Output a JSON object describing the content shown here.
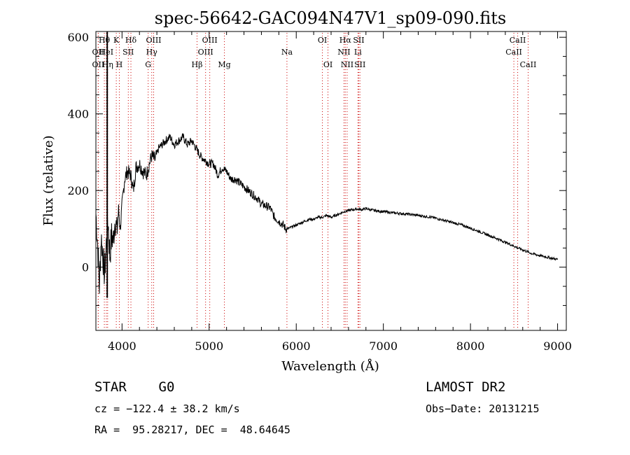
{
  "chart_data": {
    "type": "line",
    "title": "spec-56642-GAC094N47V1_sp09-090.fits",
    "xlabel": "Wavelength (Å)",
    "ylabel": "Flux (relative)",
    "xlim": [
      3700,
      9100
    ],
    "ylim": [
      -165,
      615
    ],
    "xticks": [
      4000,
      5000,
      6000,
      7000,
      8000,
      9000
    ],
    "yticks": [
      0,
      200,
      400,
      600
    ],
    "grid": false,
    "series": [
      {
        "x": [
          3700,
          3720,
          3740,
          3760,
          3780,
          3800,
          3820,
          3840,
          3860,
          3880,
          3900,
          3920,
          3940,
          3960,
          3980,
          4000,
          4030,
          4060,
          4100,
          4130,
          4160,
          4200,
          4240,
          4280,
          4300,
          4340,
          4380,
          4420,
          4460,
          4500,
          4550,
          4600,
          4650,
          4700,
          4750,
          4800,
          4850,
          4900,
          4950,
          5000,
          5050,
          5100,
          5150,
          5200,
          5250,
          5300,
          5350,
          5400,
          5450,
          5500,
          5550,
          5600,
          5650,
          5700,
          5750,
          5800,
          5850,
          5880,
          5900,
          5950,
          6000,
          6050,
          6100,
          6150,
          6200,
          6250,
          6300,
          6350,
          6400,
          6450,
          6500,
          6550,
          6600,
          6650,
          6700,
          6750,
          6800,
          6850,
          6900,
          6950,
          7000,
          7100,
          7200,
          7300,
          7400,
          7500,
          7600,
          7700,
          7800,
          7900,
          8000,
          8100,
          8200,
          8300,
          8400,
          8500,
          8600,
          8700,
          8800,
          8900,
          9000
        ],
        "y": [
          140,
          60,
          -50,
          80,
          30,
          -20,
          60,
          120,
          30,
          80,
          70,
          130,
          90,
          150,
          100,
          160,
          230,
          250,
          240,
          200,
          260,
          270,
          250,
          240,
          260,
          290,
          280,
          310,
          320,
          330,
          340,
          320,
          330,
          340,
          320,
          330,
          310,
          290,
          280,
          270,
          270,
          240,
          260,
          250,
          230,
          230,
          220,
          210,
          200,
          190,
          180,
          165,
          160,
          155,
          130,
          120,
          110,
          100,
          100,
          105,
          110,
          115,
          120,
          125,
          125,
          130,
          130,
          135,
          130,
          135,
          140,
          145,
          148,
          150,
          152,
          150,
          153,
          150,
          148,
          146,
          145,
          142,
          140,
          138,
          135,
          132,
          128,
          122,
          116,
          110,
          102,
          93,
          84,
          75,
          65,
          55,
          45,
          36,
          30,
          25,
          20
        ]
      }
    ],
    "lines": [
      {
        "label": "Hθ",
        "x": 3797,
        "row": 1
      },
      {
        "label": "OII",
        "x": 3727,
        "row": 2
      },
      {
        "label": "OII",
        "x": 3727,
        "row": 3
      },
      {
        "label": "Hη",
        "x": 3835,
        "row": 3
      },
      {
        "label": "HeI",
        "x": 3820,
        "row": 2
      },
      {
        "label": "K",
        "x": 3934,
        "row": 1
      },
      {
        "label": "H",
        "x": 3969,
        "row": 3
      },
      {
        "label": "SII",
        "x": 4072,
        "row": 2
      },
      {
        "label": "Hδ",
        "x": 4102,
        "row": 1
      },
      {
        "label": "OIII",
        "x": 4363,
        "row": 1
      },
      {
        "label": "Hγ",
        "x": 4341,
        "row": 2
      },
      {
        "label": "G",
        "x": 4300,
        "row": 3
      },
      {
        "label": "Hβ",
        "x": 4861,
        "row": 3
      },
      {
        "label": "OIII",
        "x": 5007,
        "row": 1
      },
      {
        "label": "OIII",
        "x": 4959,
        "row": 2
      },
      {
        "label": "Mg",
        "x": 5175,
        "row": 3
      },
      {
        "label": "Na",
        "x": 5893,
        "row": 2
      },
      {
        "label": "OI",
        "x": 6300,
        "row": 1
      },
      {
        "label": "OI",
        "x": 6364,
        "row": 3
      },
      {
        "label": "Hα",
        "x": 6563,
        "row": 1
      },
      {
        "label": "SII",
        "x": 6717,
        "row": 1
      },
      {
        "label": "NII",
        "x": 6548,
        "row": 2
      },
      {
        "label": "Li",
        "x": 6708,
        "row": 2
      },
      {
        "label": "NII",
        "x": 6584,
        "row": 3
      },
      {
        "label": "SII",
        "x": 6731,
        "row": 3
      },
      {
        "label": "CaII",
        "x": 8542,
        "row": 1
      },
      {
        "label": "CaII",
        "x": 8498,
        "row": 2
      },
      {
        "label": "CaII",
        "x": 8662,
        "row": 3
      }
    ]
  },
  "info": {
    "star_class": "STAR    G0",
    "survey": "LAMOST DR2",
    "cz": "cz = −122.4 ± 38.2 km/s",
    "obs_date": "Obs−Date: 20131215",
    "radec": "RA =  95.28217, DEC =  48.64645"
  },
  "colors": {
    "line_marker": "#cc0000",
    "spectrum": "#000000"
  }
}
